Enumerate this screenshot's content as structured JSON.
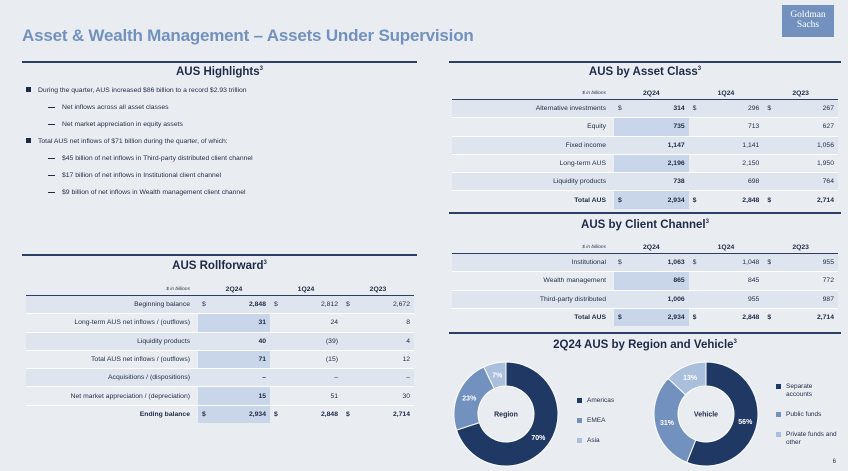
{
  "header": {
    "title": "Asset & Wealth Management – Assets Under Supervision",
    "logo_line1": "Goldman",
    "logo_line2": "Sachs"
  },
  "highlights": {
    "title": "AUS Highlights",
    "footnote": "3",
    "items": [
      {
        "level": 1,
        "text": "During the quarter, AUS increased $86 billion to a record $2.93 trillion"
      },
      {
        "level": 2,
        "text": "Net inflows across all asset classes"
      },
      {
        "level": 2,
        "text": "Net market appreciation in equity assets"
      },
      {
        "level": 1,
        "text": "Total AUS net inflows of $71 billion during the quarter, of which:"
      },
      {
        "level": 2,
        "text": "$45 billion of net inflows in Third-party distributed client channel"
      },
      {
        "level": 2,
        "text": "$17 billion of net inflows in Institutional client channel"
      },
      {
        "level": 2,
        "text": "$9 billion of net inflows in Wealth management client channel"
      }
    ]
  },
  "rollforward": {
    "title": "AUS Rollforward",
    "footnote": "3",
    "unit": "$ in billions",
    "columns": [
      "2Q24",
      "1Q24",
      "2Q23"
    ],
    "rows": [
      {
        "label": "Beginning balance",
        "cur": "$",
        "values": [
          "2,848",
          "2,812",
          "2,672"
        ]
      },
      {
        "label": "Long-term AUS net inflows / (outflows)",
        "cur": "",
        "values": [
          "31",
          "24",
          "8"
        ]
      },
      {
        "label": "Liquidity products",
        "cur": "",
        "values": [
          "40",
          "(39)",
          "4"
        ]
      },
      {
        "label": "Total AUS net inflows / (outflows)",
        "cur": "",
        "values": [
          "71",
          "(15)",
          "12"
        ]
      },
      {
        "label": "Acquisitions / (dispositions)",
        "cur": "",
        "values": [
          "–",
          "–",
          "–"
        ]
      },
      {
        "label": "Net market appreciation / (depreciation)",
        "cur": "",
        "values": [
          "15",
          "51",
          "30"
        ]
      }
    ],
    "total": {
      "label": "Ending balance",
      "cur": "$",
      "values": [
        "2,934",
        "2,848",
        "2,714"
      ]
    }
  },
  "asset_class": {
    "title": "AUS by Asset Class",
    "footnote": "3",
    "unit": "$ in billions",
    "columns": [
      "2Q24",
      "1Q24",
      "2Q23"
    ],
    "rows": [
      {
        "label": "Alternative investments",
        "cur": "$",
        "values": [
          "314",
          "296",
          "267"
        ]
      },
      {
        "label": "Equity",
        "cur": "",
        "values": [
          "735",
          "713",
          "627"
        ]
      },
      {
        "label": "Fixed income",
        "cur": "",
        "values": [
          "1,147",
          "1,141",
          "1,056"
        ]
      },
      {
        "label": "Long-term AUS",
        "cur": "",
        "values": [
          "2,196",
          "2,150",
          "1,950"
        ]
      },
      {
        "label": "Liquidity products",
        "cur": "",
        "values": [
          "738",
          "698",
          "764"
        ]
      }
    ],
    "total": {
      "label": "Total AUS",
      "cur": "$",
      "values": [
        "2,934",
        "2,848",
        "2,714"
      ]
    }
  },
  "client_channel": {
    "title": "AUS by Client Channel",
    "footnote": "3",
    "unit": "$ in billions",
    "columns": [
      "2Q24",
      "1Q24",
      "2Q23"
    ],
    "rows": [
      {
        "label": "Institutional",
        "cur": "$",
        "values": [
          "1,063",
          "1,048",
          "955"
        ]
      },
      {
        "label": "Wealth management",
        "cur": "",
        "values": [
          "865",
          "845",
          "772"
        ]
      },
      {
        "label": "Third-party distributed",
        "cur": "",
        "values": [
          "1,006",
          "955",
          "987"
        ]
      }
    ],
    "total": {
      "label": "Total AUS",
      "cur": "$",
      "values": [
        "2,934",
        "2,848",
        "2,714"
      ]
    }
  },
  "region_vehicle": {
    "title": "2Q24 AUS by Region and Vehicle",
    "footnote": "3"
  },
  "chart_data": [
    {
      "type": "pie",
      "center_label": "Region",
      "categories": [
        "Americas",
        "EMEA",
        "Asia"
      ],
      "values": [
        70,
        23,
        7
      ],
      "labels": [
        "70%",
        "23%",
        "7%"
      ],
      "colors": [
        "#1f3864",
        "#7391be",
        "#a9bfdc"
      ]
    },
    {
      "type": "pie",
      "center_label": "Vehicle",
      "categories": [
        "Separate accounts",
        "Public funds",
        "Private funds and other"
      ],
      "values": [
        56,
        31,
        13
      ],
      "labels": [
        "56%",
        "31%",
        "13%"
      ],
      "colors": [
        "#1f3864",
        "#7391be",
        "#a9bfdc"
      ]
    }
  ],
  "page_number": "6"
}
